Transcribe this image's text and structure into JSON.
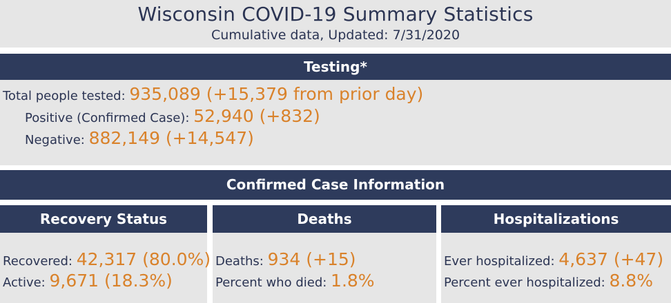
{
  "header": {
    "title": "Wisconsin COVID-19 Summary Statistics",
    "subtitle": "Cumulative data, Updated: 7/31/2020"
  },
  "testing": {
    "heading": "Testing*",
    "total": {
      "label": "Total people tested:",
      "value": "935,089 (+15,379 from prior day)"
    },
    "positive": {
      "label": "Positive (Confirmed Case):",
      "value": "52,940 (+832)"
    },
    "negative": {
      "label": "Negative:",
      "value": "882,149 (+14,547)"
    }
  },
  "confirmed": {
    "heading": "Confirmed Case Information",
    "recovery": {
      "heading": "Recovery Status",
      "recovered": {
        "label": "Recovered:",
        "value": "42,317 (80.0%)"
      },
      "active": {
        "label": "Active:",
        "value": "9,671 (18.3%)"
      }
    },
    "deaths": {
      "heading": "Deaths",
      "deaths": {
        "label": "Deaths:",
        "value": "934 (+15)"
      },
      "percent": {
        "label": "Percent who died:",
        "value": "1.8%"
      }
    },
    "hospitalizations": {
      "heading": "Hospitalizations",
      "ever": {
        "label": "Ever hospitalized:",
        "value": "4,637 (+47)"
      },
      "percent": {
        "label": "Percent ever hospitalized:",
        "value": "8.8%"
      }
    }
  },
  "colors": {
    "navy": "#2e3b5c",
    "orange": "#d9822b",
    "panel": "#e6e6e6"
  }
}
